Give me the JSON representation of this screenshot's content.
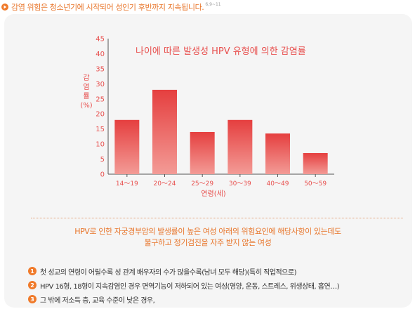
{
  "header": {
    "text": "감염 위험은 청소년기에 시작되어 성인기 후반까지 지속됩니다.",
    "ref": "6,9~11"
  },
  "chart_data": {
    "type": "bar",
    "title": "나이에 따른 발생성 HPV 유형에 의한 감염률",
    "ylabel": "감염률(%)",
    "xlabel": "연령(세)",
    "categories": [
      "14～19",
      "20～24",
      "25～29",
      "30～39",
      "40～49",
      "50～59"
    ],
    "values": [
      18,
      28,
      14,
      18,
      13.5,
      7
    ],
    "ylim": [
      0,
      45
    ],
    "yticks": [
      0,
      5,
      10,
      15,
      20,
      25,
      30,
      35,
      40,
      45
    ],
    "bar_color": "#e8504e",
    "title_color": "#e8504e"
  },
  "description": {
    "line1": "HPV로 인한 자궁경부암의 발생률이 높은 여성 아래의 위험요인에 해당사항이 있는데도",
    "line2": "불구하고 정기검진을 자주 받지 않는 여성"
  },
  "risk_factors": [
    {
      "number": "1",
      "text": "첫 성교의 연령이 어릴수록 성 관계 배우자의 수가 많을수록(남녀 모두 해당)(특히 직업적으로)"
    },
    {
      "number": "2",
      "text": "HPV 16형, 18형이 지속감염인 경우 면역기능이 저하되어 있는 여성(영양, 운동, 스트레스, 위생상태, 흡연…)"
    },
    {
      "number": "3",
      "text": "그 밖에 저소득 층, 교육 수준이 낮은 경우,"
    }
  ],
  "colors": {
    "accent": "#f07a2a",
    "bar": "#e8504e"
  }
}
